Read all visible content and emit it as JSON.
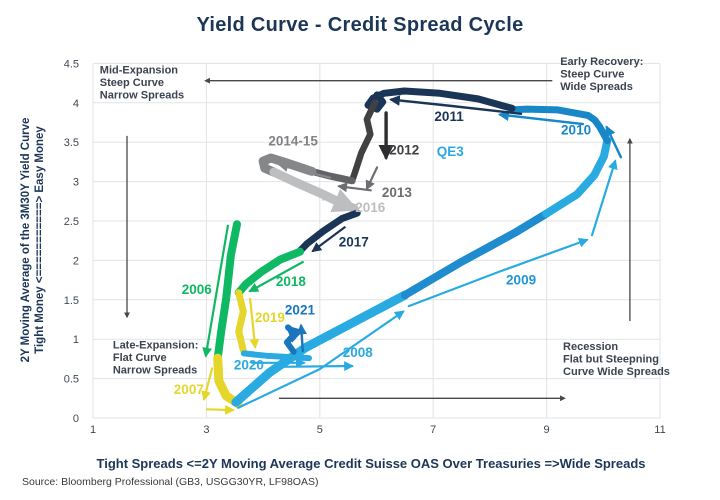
{
  "header": {
    "title": "Yield Curve - Credit Spread Cycle"
  },
  "source_note": "Source: Bloomberg Professional (GB3, USGG30YR, LF98OAS)",
  "colors": {
    "title_navy": "#1b3657",
    "grid": "#e2e3e4",
    "tick_text": "#3f4752",
    "annotation_text": "#3b4350",
    "guide_arrow": "#47484a",
    "green": "#0fb863",
    "yellow": "#e5d62c",
    "cyan": "#29abe2",
    "blue_2009": "#1e8cce",
    "blue_2010": "#1787c8",
    "blue_2021": "#1b75bc",
    "navy": "#1b3557",
    "charcoal": "#414042",
    "gray_2013": "#626366",
    "gray_2014": "#85878a",
    "light_gray": "#bcbec0",
    "black_arrow": "#2e2e30"
  },
  "chart_data": {
    "type": "line",
    "title": "Yield Curve - Credit Spread Cycle",
    "xlabel": "Tight Spreads <=2Y Moving Average Credit Suisse OAS Over Treasuries =>Wide Spreads",
    "ylabel_line1": "2Y Moving Average of the 3M30Y Yield Curve",
    "ylabel_line2": "Tight Money <===========> Easy Money",
    "xlim": [
      1,
      11
    ],
    "ylim": [
      0,
      4.5
    ],
    "x_ticks": [
      1,
      3,
      5,
      7,
      9,
      11
    ],
    "y_ticks": [
      0,
      0.5,
      1,
      1.5,
      2,
      2.5,
      3,
      3.5,
      4,
      4.5
    ],
    "grid": true,
    "segments": [
      {
        "name": "2006",
        "color": "#0fb863",
        "width": 8,
        "arrow_end": false,
        "points": [
          [
            3.54,
            2.46
          ],
          [
            3.43,
            2.06
          ],
          [
            3.35,
            1.52
          ],
          [
            3.26,
            1.09
          ],
          [
            3.2,
            0.76
          ]
        ]
      },
      {
        "name": "2007",
        "color": "#e5d62c",
        "width": 9,
        "arrow_end": false,
        "points": [
          [
            3.2,
            0.76
          ],
          [
            3.22,
            0.47
          ],
          [
            3.35,
            0.28
          ],
          [
            3.56,
            0.18
          ]
        ]
      },
      {
        "name": "2008",
        "color": "#29abe2",
        "width": 9,
        "arrow_end": false,
        "points": [
          [
            3.52,
            0.2
          ],
          [
            4.12,
            0.58
          ],
          [
            4.74,
            0.89
          ],
          [
            5.53,
            1.19
          ],
          [
            6.5,
            1.56
          ]
        ]
      },
      {
        "name": "2009",
        "color": "#1e8cce",
        "width": 8,
        "arrow_end": false,
        "points": [
          [
            6.5,
            1.56
          ],
          [
            7.47,
            1.97
          ],
          [
            8.44,
            2.35
          ],
          [
            8.99,
            2.59
          ]
        ]
      },
      {
        "name": "2009-ascent",
        "color": "#29abe2",
        "width": 8,
        "arrow_end": false,
        "points": [
          [
            8.99,
            2.59
          ],
          [
            9.54,
            2.84
          ],
          [
            9.84,
            3.08
          ],
          [
            10.01,
            3.32
          ],
          [
            10.07,
            3.52
          ]
        ]
      },
      {
        "name": "2010",
        "color": "#1787c8",
        "width": 7,
        "arrow_end": false,
        "points": [
          [
            10.07,
            3.52
          ],
          [
            9.94,
            3.69
          ],
          [
            9.85,
            3.78
          ],
          [
            9.73,
            3.84
          ],
          [
            9.2,
            3.91
          ],
          [
            8.65,
            3.92
          ],
          [
            8.39,
            3.91
          ]
        ]
      },
      {
        "name": "2011",
        "color": "#1b3557",
        "width": 7,
        "arrow_end": false,
        "points": [
          [
            8.39,
            3.93
          ],
          [
            7.79,
            4.05
          ],
          [
            7.12,
            4.12
          ],
          [
            6.49,
            4.15
          ],
          [
            6.13,
            4.12
          ],
          [
            5.94,
            4.06
          ],
          [
            5.85,
            3.97
          ],
          [
            6.01,
            3.92
          ],
          [
            6.11,
            4.01
          ],
          [
            6.01,
            4.1
          ]
        ]
      },
      {
        "name": "2012",
        "color": "#414042",
        "width": 6.5,
        "arrow_end": false,
        "points": [
          [
            5.97,
            4.0
          ],
          [
            5.83,
            3.79
          ],
          [
            5.89,
            3.6
          ],
          [
            5.73,
            3.36
          ],
          [
            5.64,
            3.16
          ],
          [
            5.57,
            3.01
          ]
        ]
      },
      {
        "name": "2013",
        "color": "#626366",
        "width": 7,
        "arrow_end": false,
        "points": [
          [
            5.57,
            3.01
          ],
          [
            5.18,
            3.07
          ],
          [
            4.86,
            3.13
          ]
        ]
      },
      {
        "name": "2014-15",
        "color": "#85878a",
        "width": 9,
        "arrow_end": false,
        "points": [
          [
            4.86,
            3.13
          ],
          [
            4.4,
            3.24
          ],
          [
            4.14,
            3.3
          ],
          [
            4.0,
            3.26
          ],
          [
            4.03,
            3.17
          ],
          [
            4.19,
            3.12
          ]
        ]
      },
      {
        "name": "2016",
        "color": "#bcbec0",
        "width": 9,
        "arrow_end": true,
        "points": [
          [
            4.19,
            3.12
          ],
          [
            4.58,
            2.99
          ],
          [
            4.99,
            2.86
          ],
          [
            5.37,
            2.73
          ],
          [
            5.6,
            2.66
          ]
        ]
      },
      {
        "name": "2017",
        "color": "#1b3557",
        "width": 7,
        "arrow_end": false,
        "points": [
          [
            5.66,
            2.6
          ],
          [
            5.39,
            2.53
          ],
          [
            5.06,
            2.37
          ],
          [
            4.77,
            2.21
          ],
          [
            4.65,
            2.12
          ]
        ]
      },
      {
        "name": "2018",
        "color": "#0fb863",
        "width": 8,
        "arrow_end": false,
        "points": [
          [
            4.65,
            2.11
          ],
          [
            4.3,
            2.01
          ],
          [
            3.96,
            1.85
          ],
          [
            3.7,
            1.7
          ],
          [
            3.57,
            1.59
          ]
        ]
      },
      {
        "name": "2019",
        "color": "#e5d62c",
        "width": 7,
        "arrow_end": false,
        "points": [
          [
            3.57,
            1.59
          ],
          [
            3.65,
            1.35
          ],
          [
            3.57,
            1.1
          ],
          [
            3.65,
            0.86
          ]
        ]
      },
      {
        "name": "2020",
        "color": "#29abe2",
        "width": 6,
        "arrow_end": false,
        "points": [
          [
            3.66,
            0.82
          ],
          [
            4.05,
            0.79
          ],
          [
            4.51,
            0.77
          ],
          [
            4.81,
            0.76
          ]
        ]
      },
      {
        "name": "2021",
        "color": "#1b75bc",
        "width": 6,
        "arrow_end": true,
        "points": [
          [
            4.54,
            0.84
          ],
          [
            4.42,
            0.96
          ],
          [
            4.56,
            1.07
          ],
          [
            4.44,
            1.15
          ]
        ]
      }
    ],
    "direction_arrows": [
      {
        "name": "2006-dir",
        "color": "#0fb863",
        "width": 2.2,
        "points": [
          [
            3.38,
            2.44
          ],
          [
            2.99,
            0.79
          ]
        ]
      },
      {
        "name": "2007-dir-down",
        "color": "#e5d62c",
        "width": 2.2,
        "points": [
          [
            3.1,
            0.63
          ],
          [
            2.96,
            0.24
          ]
        ]
      },
      {
        "name": "2007-dir-right",
        "color": "#e5d62c",
        "width": 2.2,
        "points": [
          [
            3.01,
            0.11
          ],
          [
            3.47,
            0.1
          ]
        ]
      },
      {
        "name": "2008-dir-1",
        "color": "#29abe2",
        "width": 2.2,
        "points": [
          [
            3.56,
            0.13
          ],
          [
            5.0,
            0.62
          ],
          [
            6.47,
            1.35
          ]
        ]
      },
      {
        "name": "2009-dir",
        "color": "#29abe2",
        "width": 2.2,
        "points": [
          [
            6.57,
            1.42
          ],
          [
            8.18,
            1.86
          ],
          [
            9.71,
            2.26
          ]
        ]
      },
      {
        "name": "2009-dir-up",
        "color": "#29abe2",
        "width": 2.2,
        "points": [
          [
            9.8,
            2.32
          ],
          [
            10.21,
            3.26
          ]
        ]
      },
      {
        "name": "2010-dir-up",
        "color": "#1787c8",
        "width": 2.4,
        "points": [
          [
            10.31,
            3.31
          ],
          [
            10.06,
            3.69
          ]
        ]
      },
      {
        "name": "2010-dir-left",
        "color": "#1787c8",
        "width": 2.4,
        "points": [
          [
            9.64,
            3.73
          ],
          [
            8.18,
            3.85
          ]
        ]
      },
      {
        "name": "2011-dir",
        "color": "#1b3557",
        "width": 2.4,
        "points": [
          [
            8.55,
            3.86
          ],
          [
            7.33,
            3.96
          ],
          [
            6.26,
            4.04
          ]
        ]
      },
      {
        "name": "2012-dir",
        "color": "#2e2e30",
        "width": 3.4,
        "points": [
          [
            6.17,
            3.87
          ],
          [
            6.17,
            3.31
          ]
        ]
      },
      {
        "name": "2013-dir-down",
        "color": "#6d6e71",
        "width": 2.2,
        "points": [
          [
            6.01,
            3.18
          ],
          [
            5.83,
            2.91
          ]
        ]
      },
      {
        "name": "2013-dir-left",
        "color": "#6d6e71",
        "width": 2.2,
        "points": [
          [
            5.9,
            2.89
          ],
          [
            5.34,
            2.94
          ]
        ]
      },
      {
        "name": "2014-15-dir",
        "color": "#85878a",
        "width": 2.2,
        "points": [
          [
            5.18,
            3.05
          ],
          [
            4.3,
            3.21
          ]
        ]
      },
      {
        "name": "2016-dir",
        "color": "#bcbec0",
        "width": 2.2,
        "points": [
          [
            4.42,
            3.01
          ],
          [
            5.2,
            2.78
          ]
        ]
      },
      {
        "name": "2017-dir",
        "color": "#1b3557",
        "width": 2.2,
        "points": [
          [
            5.44,
            2.42
          ],
          [
            4.88,
            2.12
          ]
        ]
      },
      {
        "name": "2018-dir",
        "color": "#0fb863",
        "width": 2.2,
        "points": [
          [
            4.7,
            1.98
          ],
          [
            3.77,
            1.61
          ]
        ]
      },
      {
        "name": "2019-dir",
        "color": "#e5d62c",
        "width": 2.2,
        "points": [
          [
            3.77,
            1.51
          ],
          [
            3.86,
            0.9
          ]
        ]
      },
      {
        "name": "2020-dir-1",
        "color": "#29abe2",
        "width": 2.2,
        "points": [
          [
            3.8,
            0.7
          ],
          [
            4.72,
            0.7
          ]
        ]
      },
      {
        "name": "2020-dir-2",
        "color": "#29abe2",
        "width": 2.2,
        "points": [
          [
            4.33,
            0.65
          ],
          [
            5.57,
            0.66
          ]
        ]
      },
      {
        "name": "2021-dir",
        "color": "#1b75bc",
        "width": 2.4,
        "points": [
          [
            4.7,
            0.85
          ],
          [
            4.67,
            1.17
          ]
        ]
      }
    ],
    "guide_arrows": [
      {
        "name": "guide-left",
        "color": "#47484a",
        "width": 1.3,
        "points": [
          [
            9.1,
            4.28
          ],
          [
            2.98,
            4.28
          ]
        ]
      },
      {
        "name": "guide-down",
        "color": "#47484a",
        "width": 1.3,
        "points": [
          [
            1.6,
            3.58
          ],
          [
            1.6,
            1.28
          ]
        ]
      },
      {
        "name": "guide-up",
        "color": "#47484a",
        "width": 1.3,
        "points": [
          [
            10.47,
            1.23
          ],
          [
            10.47,
            3.54
          ]
        ]
      },
      {
        "name": "guide-right",
        "color": "#47484a",
        "width": 1.3,
        "points": [
          [
            4.28,
            0.25
          ],
          [
            9.32,
            0.25
          ]
        ]
      }
    ],
    "year_labels": [
      {
        "text": "2006",
        "color": "#0fb863",
        "x": 2.83,
        "y": 1.64
      },
      {
        "text": "2007",
        "color": "#e5d62c",
        "x": 2.69,
        "y": 0.37
      },
      {
        "text": "2008",
        "color": "#29abe2",
        "x": 5.67,
        "y": 0.84
      },
      {
        "text": "2009",
        "color": "#2196d6",
        "x": 8.55,
        "y": 1.76
      },
      {
        "text": "2010",
        "color": "#1787c8",
        "x": 9.52,
        "y": 3.66
      },
      {
        "text": "2011",
        "color": "#1b3557",
        "x": 7.28,
        "y": 3.83
      },
      {
        "text": "2012",
        "color": "#414042",
        "x": 6.49,
        "y": 3.41
      },
      {
        "text": "2013",
        "color": "#6d6e71",
        "x": 6.36,
        "y": 2.87
      },
      {
        "text": "2014-15",
        "color": "#808285",
        "x": 4.53,
        "y": 3.52
      },
      {
        "text": "2016",
        "color": "#bcbec0",
        "x": 5.89,
        "y": 2.68
      },
      {
        "text": "2017",
        "color": "#1b3557",
        "x": 5.6,
        "y": 2.24
      },
      {
        "text": "2018",
        "color": "#0fb863",
        "x": 4.49,
        "y": 1.74
      },
      {
        "text": "2019",
        "color": "#e5d62c",
        "x": 4.12,
        "y": 1.28
      },
      {
        "text": "2020",
        "color": "#29abe2",
        "x": 3.75,
        "y": 0.68
      },
      {
        "text": "2021",
        "color": "#1b75bc",
        "x": 4.65,
        "y": 1.38
      },
      {
        "text": "QE3",
        "color": "#29a8e0",
        "x": 7.3,
        "y": 3.39
      }
    ],
    "annotations": [
      {
        "name": "mid-expansion",
        "x": 1.12,
        "y": 4.37,
        "lines": [
          "Mid-Expansion",
          "Steep Curve",
          "Narrow Spreads"
        ]
      },
      {
        "name": "early-recovery",
        "x": 9.24,
        "y": 4.48,
        "lines": [
          "Early Recovery:",
          "Steep Curve",
          "Wide Spreads"
        ]
      },
      {
        "name": "late-expansion",
        "x": 1.35,
        "y": 0.88,
        "lines": [
          "Late-Expansion:",
          "Flat Curve",
          "Narrow Spreads"
        ]
      },
      {
        "name": "recession",
        "x": 9.29,
        "y": 0.86,
        "lines": [
          "Recession",
          "Flat but Steepning",
          "Curve  Wide Spreads"
        ]
      }
    ]
  }
}
